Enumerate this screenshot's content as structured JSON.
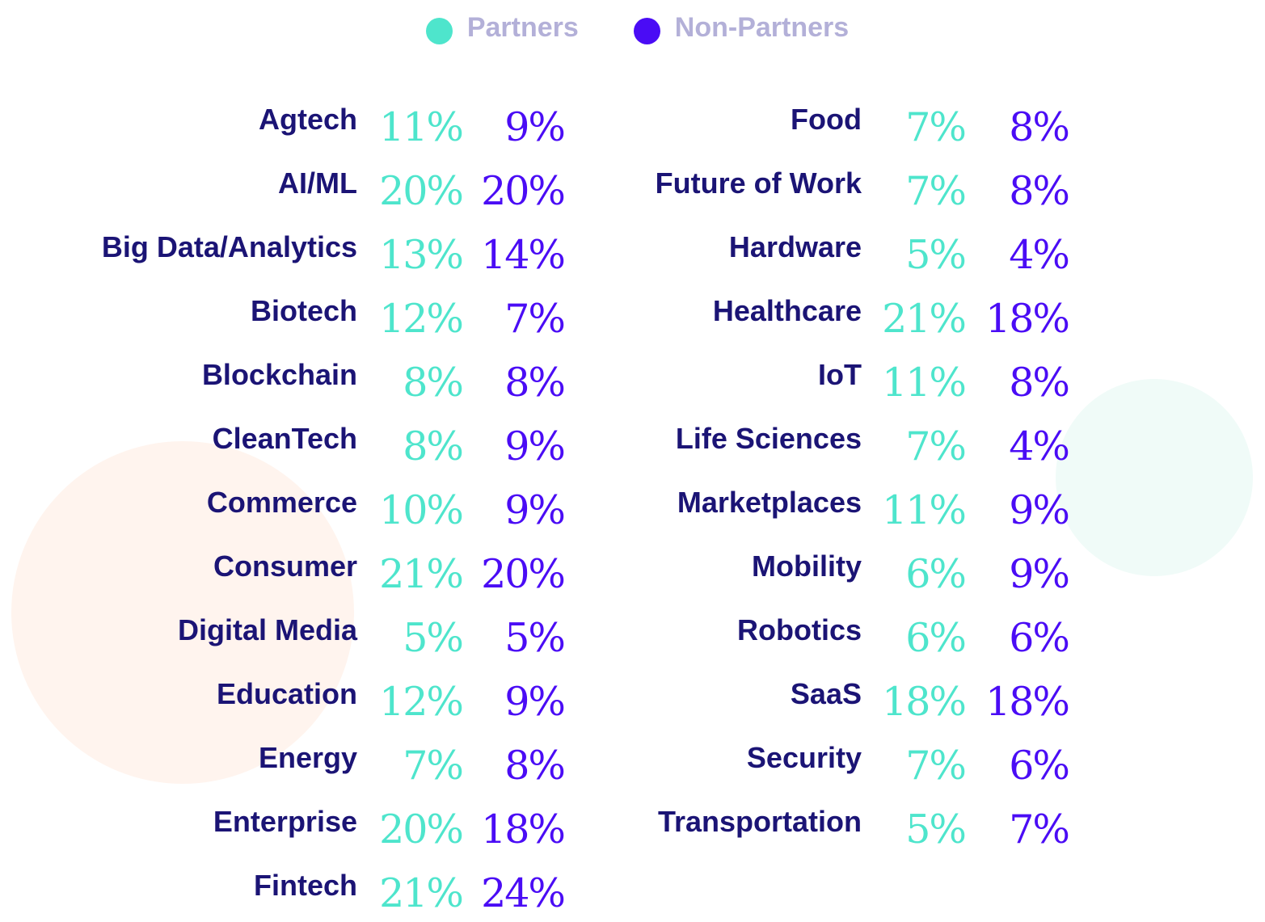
{
  "colors": {
    "partners": "#4ee5cc",
    "non_partners": "#4a0cf5",
    "label": "#1b1475",
    "legend_text": "#b3b0d8",
    "decor_peach": "#fff4ee",
    "decor_mint": "#f0fbf8"
  },
  "legend": {
    "partners": "Partners",
    "non_partners": "Non-Partners"
  },
  "chart_data": {
    "type": "table",
    "series": [
      {
        "name": "Partners",
        "color": "#4ee5cc"
      },
      {
        "name": "Non-Partners",
        "color": "#4a0cf5"
      }
    ],
    "columns": [
      {
        "rows": [
          {
            "category": "Agtech",
            "partners": "11%",
            "non_partners": "9%"
          },
          {
            "category": "AI/ML",
            "partners": "20%",
            "non_partners": "20%"
          },
          {
            "category": "Big Data/Analytics",
            "partners": "13%",
            "non_partners": "14%"
          },
          {
            "category": "Biotech",
            "partners": "12%",
            "non_partners": "7%"
          },
          {
            "category": "Blockchain",
            "partners": "8%",
            "non_partners": "8%"
          },
          {
            "category": "CleanTech",
            "partners": "8%",
            "non_partners": "9%"
          },
          {
            "category": "Commerce",
            "partners": "10%",
            "non_partners": "9%"
          },
          {
            "category": "Consumer",
            "partners": "21%",
            "non_partners": "20%"
          },
          {
            "category": "Digital Media",
            "partners": "5%",
            "non_partners": "5%"
          },
          {
            "category": "Education",
            "partners": "12%",
            "non_partners": "9%"
          },
          {
            "category": "Energy",
            "partners": "7%",
            "non_partners": "8%"
          },
          {
            "category": "Enterprise",
            "partners": "20%",
            "non_partners": "18%"
          },
          {
            "category": "Fintech",
            "partners": "21%",
            "non_partners": "24%"
          }
        ]
      },
      {
        "rows": [
          {
            "category": "Food",
            "partners": "7%",
            "non_partners": "8%"
          },
          {
            "category": "Future of Work",
            "partners": "7%",
            "non_partners": "8%"
          },
          {
            "category": "Hardware",
            "partners": "5%",
            "non_partners": "4%"
          },
          {
            "category": "Healthcare",
            "partners": "21%",
            "non_partners": "18%"
          },
          {
            "category": "IoT",
            "partners": "11%",
            "non_partners": "8%"
          },
          {
            "category": "Life Sciences",
            "partners": "7%",
            "non_partners": "4%"
          },
          {
            "category": "Marketplaces",
            "partners": "11%",
            "non_partners": "9%"
          },
          {
            "category": "Mobility",
            "partners": "6%",
            "non_partners": "9%"
          },
          {
            "category": "Robotics",
            "partners": "6%",
            "non_partners": "6%"
          },
          {
            "category": "SaaS",
            "partners": "18%",
            "non_partners": "18%"
          },
          {
            "category": "Security",
            "partners": "7%",
            "non_partners": "6%"
          },
          {
            "category": "Transportation",
            "partners": "5%",
            "non_partners": "7%"
          }
        ]
      }
    ]
  }
}
